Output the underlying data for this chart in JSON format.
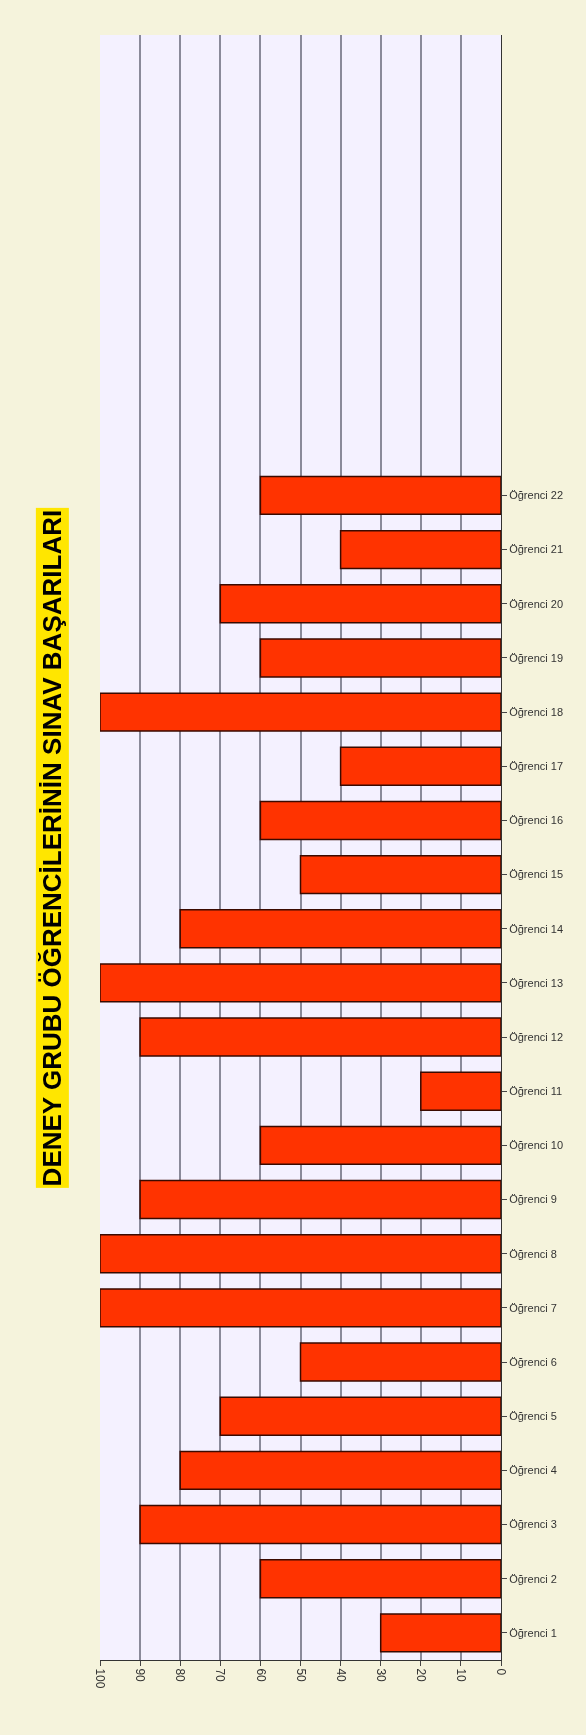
{
  "chart_data": {
    "type": "bar",
    "orientation": "horizontal",
    "title": "DENEY GRUBU ÖĞRENCİLERİNİN SINAV BAŞARILARI",
    "categories": [
      null,
      null,
      null,
      null,
      null,
      null,
      null,
      null,
      "Öğrenci 22",
      "Öğrenci 21",
      "Öğrenci 20",
      "Öğrenci 19",
      "Öğrenci 18",
      "Öğrenci 17",
      "Öğrenci 16",
      "Öğrenci 15",
      "Öğrenci 14",
      "Öğrenci 13",
      "Öğrenci 12",
      "Öğrenci 11",
      "Öğrenci 10",
      "Öğrenci 9",
      "Öğrenci 8",
      "Öğrenci 7",
      "Öğrenci 6",
      "Öğrenci 5",
      "Öğrenci 4",
      "Öğrenci 3",
      "Öğrenci 2",
      "Öğrenci 1"
    ],
    "values": [
      null,
      null,
      null,
      null,
      null,
      null,
      null,
      null,
      60,
      40,
      70,
      60,
      100,
      40,
      60,
      50,
      80,
      100,
      90,
      20,
      60,
      90,
      100,
      100,
      50,
      70,
      80,
      90,
      60,
      30
    ],
    "color": "#ff3300",
    "xlim": [
      100,
      0
    ],
    "xticks": [
      0,
      10,
      20,
      30,
      40,
      50,
      60,
      70,
      80,
      90,
      100
    ],
    "grid": "x"
  }
}
